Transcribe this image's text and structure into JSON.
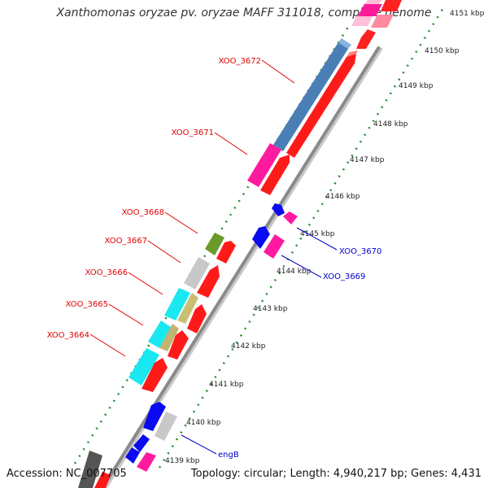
{
  "title": "Xanthomonas oryzae pv. oryzae MAFF 311018, complete genome",
  "footer": {
    "accession": "Accession: NC_007705",
    "topology": "Topology: circular; Length: 4,940,217 bp; Genes: 4,431"
  },
  "colors": {
    "backbone": "#9a9a9a",
    "tick_dash": "#2a8a2a",
    "label_red": "#e00000",
    "label_blue": "#0000cc"
  },
  "ticks": [
    "4151 kbp",
    "4150 kbp",
    "4149 kbp",
    "4148 kbp",
    "4147 kbp",
    "4146 kbp",
    "4145 kbp",
    "4144 kbp",
    "4143 kbp",
    "4142 kbp",
    "4141 kbp",
    "4140 kbp",
    "4139 kbp"
  ],
  "labels": {
    "XOO_3672": "XOO_3672",
    "XOO_3671": "XOO_3671",
    "XOO_3668": "XOO_3668",
    "XOO_3667": "XOO_3667",
    "XOO_3666": "XOO_3666",
    "XOO_3665": "XOO_3665",
    "XOO_3664": "XOO_3664",
    "XOO_3670": "XOO_3670",
    "XOO_3669": "XOO_3669",
    "engB": "engB"
  }
}
